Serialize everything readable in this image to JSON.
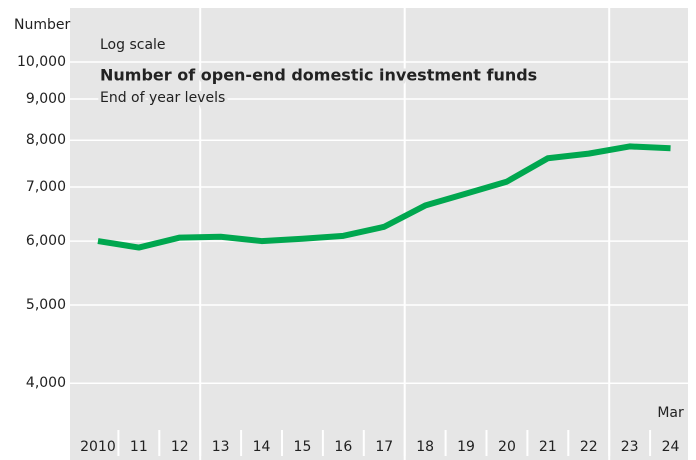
{
  "chart_data": {
    "type": "line",
    "title": "Number of open-end domestic investment funds",
    "subtitle": "End of year levels",
    "y_label": "Number",
    "scale_note": "Log scale",
    "log_scale": true,
    "categories": [
      "2010",
      "11",
      "12",
      "13",
      "14",
      "15",
      "16",
      "17",
      "18",
      "19",
      "20",
      "21",
      "22",
      "23",
      "24"
    ],
    "annotations": [
      "Mar"
    ],
    "series": [
      {
        "name": "Number of open-end domestic investment funds",
        "color": "#00a74f",
        "values": [
          6000,
          5890,
          6060,
          6075,
          6000,
          6040,
          6090,
          6250,
          6640,
          6870,
          7110,
          7600,
          7700,
          7860,
          7820
        ]
      }
    ],
    "ylim": [
      3500,
      11600
    ],
    "yticks": [
      {
        "value": 4000,
        "label": "4,000"
      },
      {
        "value": 5000,
        "label": "5,000"
      },
      {
        "value": 6000,
        "label": "6,000"
      },
      {
        "value": 7000,
        "label": "7,000"
      },
      {
        "value": 8000,
        "label": "8,000"
      },
      {
        "value": 9000,
        "label": "9,000"
      },
      {
        "value": 10000,
        "label": "10,000"
      }
    ],
    "grid": true
  }
}
